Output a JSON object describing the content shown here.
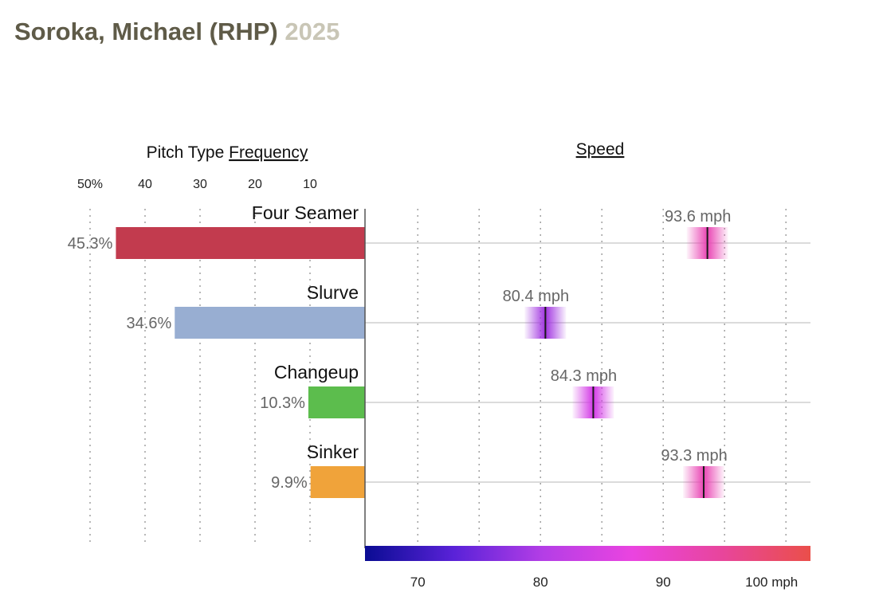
{
  "page": {
    "player": "Soroka, Michael (RHP)",
    "year": "2025"
  },
  "chart_data": {
    "type": "bar",
    "frequency_panel": {
      "title_prefix": "Pitch Type ",
      "title_link": "Frequency",
      "ticks": [
        {
          "value": 50,
          "label": "50%"
        },
        {
          "value": 40,
          "label": "40"
        },
        {
          "value": 30,
          "label": "30"
        },
        {
          "value": 20,
          "label": "20"
        },
        {
          "value": 10,
          "label": "10"
        }
      ],
      "xlim": [
        0,
        50
      ]
    },
    "speed_panel": {
      "title": "Speed",
      "ticks": [
        {
          "value": 70,
          "label": "70"
        },
        {
          "value": 80,
          "label": "80"
        },
        {
          "value": 90,
          "label": "90"
        },
        {
          "value": 100,
          "label": "100 mph"
        }
      ],
      "xlim": [
        65.7,
        102
      ]
    },
    "categories": [
      "Four Seamer",
      "Slurve",
      "Changeup",
      "Sinker"
    ],
    "series": [
      {
        "values": [
          45.3,
          34.6,
          10.3,
          9.9
        ],
        "labels": [
          "45.3%",
          "34.6%",
          "10.3%",
          "9.9%"
        ],
        "colors": [
          "#c23b4e",
          "#98aed2",
          "#5cbd4d",
          "#f0a33a"
        ]
      },
      {
        "values": [
          93.6,
          80.4,
          84.3,
          93.3
        ],
        "labels": [
          "93.6 mph",
          "80.4 mph",
          "84.3 mph",
          "93.3 mph"
        ],
        "colors": [
          "#e946b4",
          "#a134e0",
          "#d33ae6",
          "#e946b4"
        ]
      }
    ],
    "colorscale": [
      "#0a0c93",
      "#5a22d8",
      "#b43ee6",
      "#ea44e0",
      "#e8459c",
      "#ea4f4a"
    ],
    "grid": true
  }
}
